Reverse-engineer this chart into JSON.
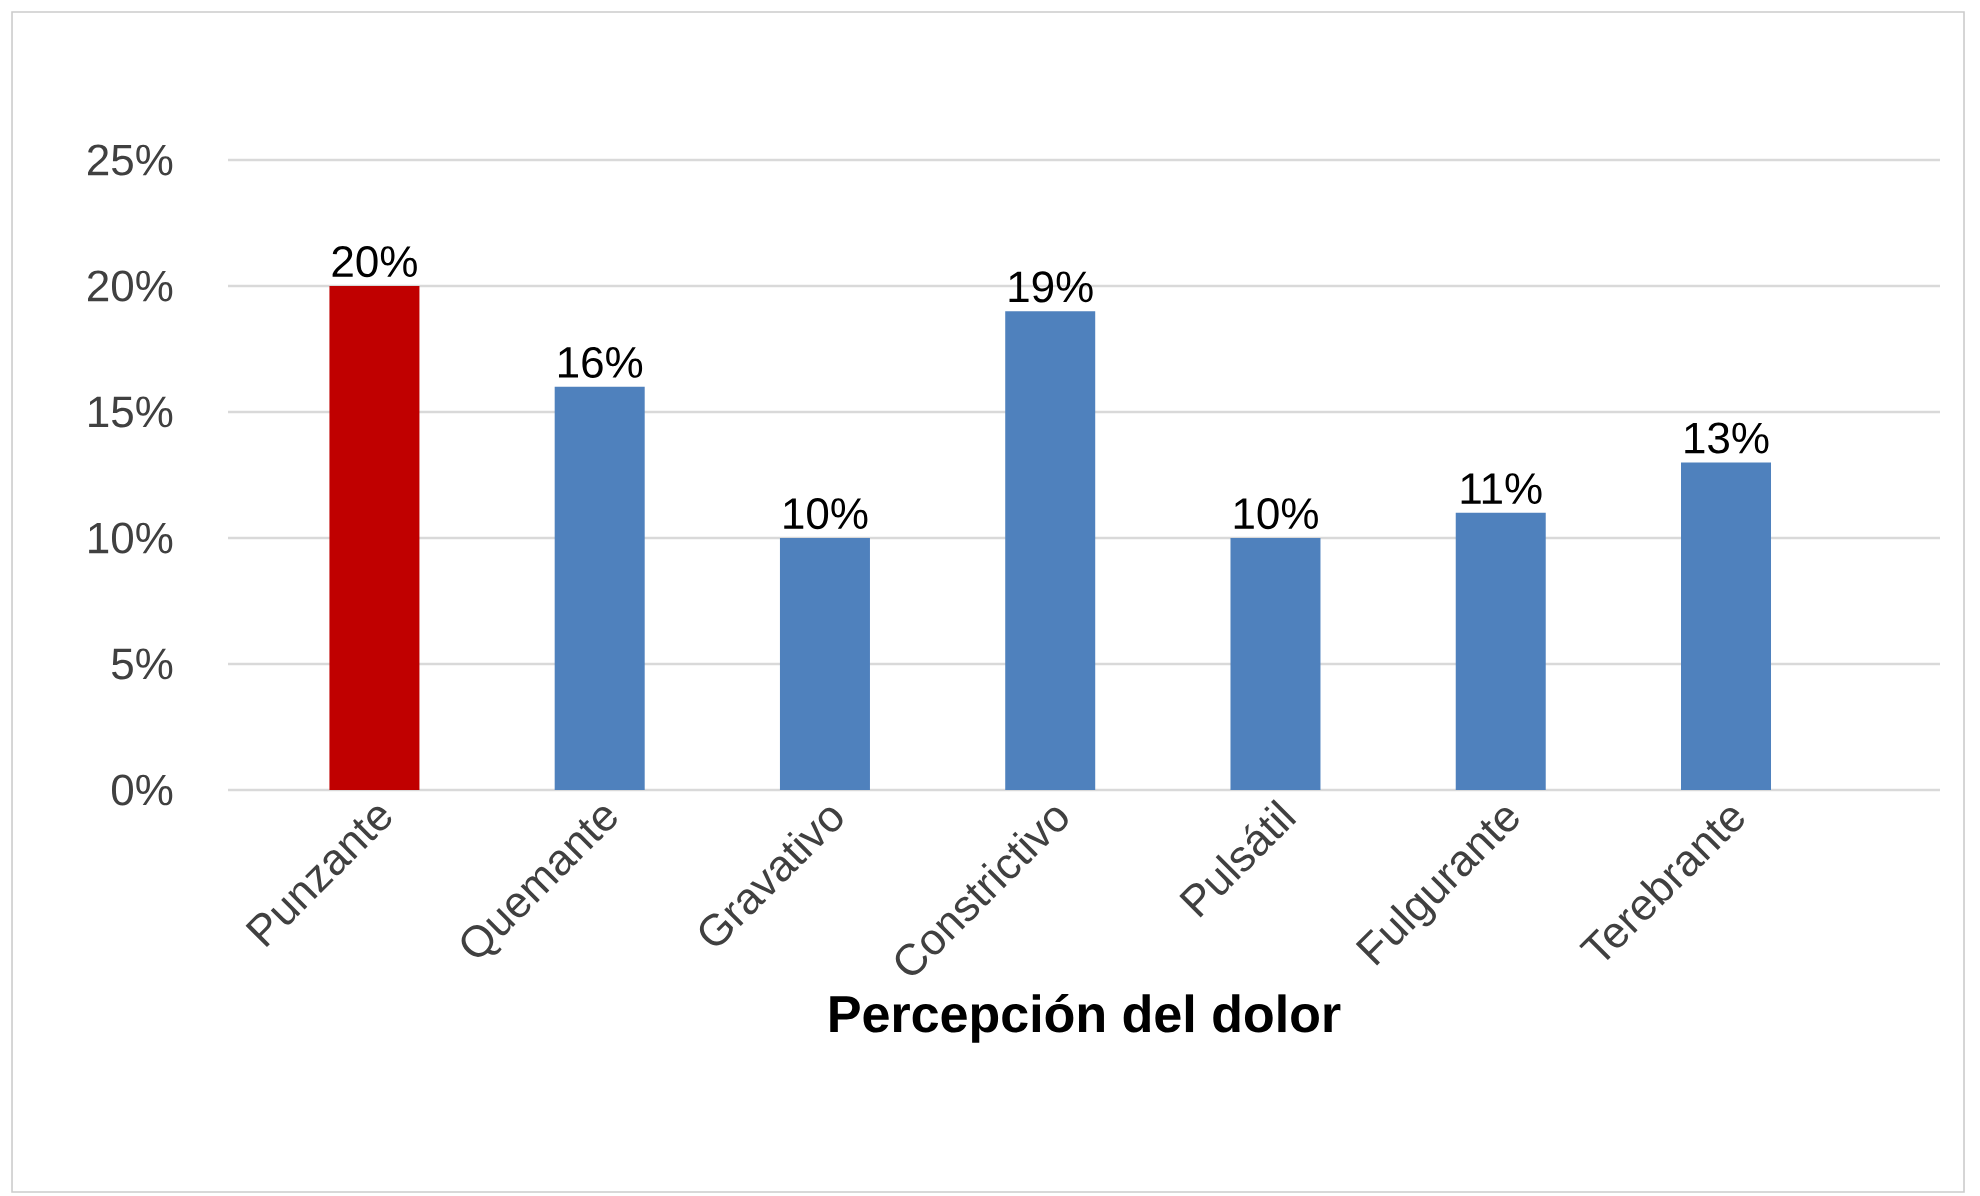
{
  "chart_data": {
    "type": "bar",
    "xlabel": "Percepción del dolor",
    "categories": [
      "Punzante",
      "Quemante",
      "Gravativo",
      "Constrictivo",
      "Pulsátil",
      "Fulgurante",
      "Terebrante"
    ],
    "values": [
      20,
      16,
      10,
      19,
      10,
      11,
      13
    ],
    "value_labels": [
      "20%",
      "16%",
      "10%",
      "19%",
      "10%",
      "11%",
      "13%"
    ],
    "colors": [
      "#c00000",
      "#4f81bd",
      "#4f81bd",
      "#4f81bd",
      "#4f81bd",
      "#4f81bd",
      "#4f81bd"
    ],
    "ylim": [
      0,
      25
    ],
    "yticks": [
      {
        "value": 0,
        "label": "0%"
      },
      {
        "value": 5,
        "label": "5%"
      },
      {
        "value": 10,
        "label": "10%"
      },
      {
        "value": 15,
        "label": "15%"
      },
      {
        "value": 20,
        "label": "20%"
      },
      {
        "value": 25,
        "label": "25%"
      }
    ],
    "grid": "y"
  }
}
